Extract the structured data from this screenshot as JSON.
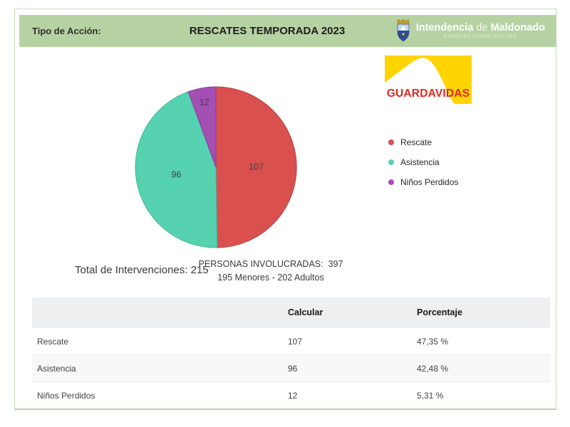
{
  "header": {
    "tipo_label": "Tipo de Acción:",
    "title": "RESCATES TEMPORADA 2023",
    "org": {
      "name_part1": "Intendencia",
      "name_mid": "de",
      "name_part2": "Maldonado",
      "tagline": "CONSTRUYENDO FUTURO"
    }
  },
  "logo_guardavidas": {
    "text": "GUARDAVIDAS"
  },
  "chart_data": {
    "type": "pie",
    "title": "RESCATES TEMPORADA 2023",
    "categories": [
      "Rescate",
      "Asistencia",
      "Niños Perdidos"
    ],
    "values": [
      107,
      96,
      12
    ],
    "slice_labels": [
      "107",
      "96",
      "12"
    ],
    "colors": [
      "#D9504E",
      "#56D2B0",
      "#A44FB4"
    ],
    "stroke_colors": [
      "#B74140",
      "#3FB997",
      "#8A3AA0"
    ],
    "legend_position": "right",
    "total": 215,
    "start_angle_deg": 0,
    "direction": "clockwise"
  },
  "summary": {
    "total_line": "Total de Intervenciones: 215",
    "personas_line1": "PERSONAS INVOLUCRADAS:  397",
    "personas_line2": "195 Menores - 202 Adultos"
  },
  "table": {
    "col_calcular": "Calcular",
    "col_porcentaje": "Porcentaje",
    "rows": [
      {
        "label": "Rescate",
        "calcular": "107",
        "porcentaje": "47,35 %"
      },
      {
        "label": "Asistencia",
        "calcular": "96",
        "porcentaje": "42,48 %"
      },
      {
        "label": "Niños Perdidos",
        "calcular": "12",
        "porcentaje": "5,31 %"
      }
    ]
  },
  "colors": {
    "header_green": "#B6D2A3",
    "card_border": "#C6D9BA",
    "logo_yellow": "#FFD400",
    "logo_red": "#E1261C"
  }
}
